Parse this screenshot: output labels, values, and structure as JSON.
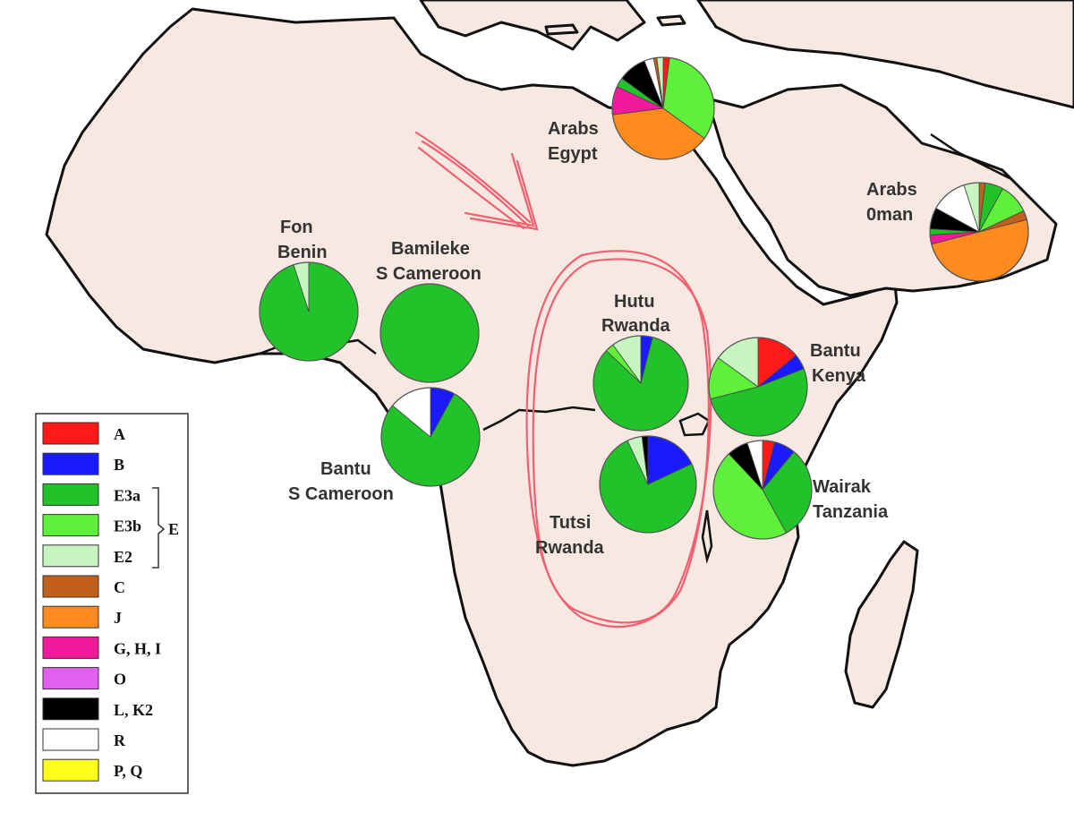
{
  "colors": {
    "A": "#ff1a1a",
    "B": "#1a1aff",
    "E3a": "#22c22a",
    "E3b": "#5ef03a",
    "E2": "#c6f5c0",
    "C": "#c0601c",
    "J": "#ff8a1e",
    "GHI": "#f01a9a",
    "O": "#e060f0",
    "LK2": "#000000",
    "R": "#ffffff",
    "PQ": "#ffff1a",
    "land": "#f7e8e2",
    "sea": "#ffffff",
    "coast": "#111111",
    "annotation": "#f06070"
  },
  "legend": {
    "group_label": "E",
    "items": [
      {
        "key": "A",
        "label": "A",
        "color": "#ff1a1a"
      },
      {
        "key": "B",
        "label": "B",
        "color": "#1a1aff"
      },
      {
        "key": "E3a",
        "label": "E3a",
        "color": "#22c22a"
      },
      {
        "key": "E3b",
        "label": "E3b",
        "color": "#5ef03a"
      },
      {
        "key": "E2",
        "label": "E2",
        "color": "#c6f5c0"
      },
      {
        "key": "C",
        "label": "C",
        "color": "#c0601c"
      },
      {
        "key": "J",
        "label": "J",
        "color": "#ff8a1e"
      },
      {
        "key": "GHI",
        "label": "G, H, I",
        "color": "#f01a9a"
      },
      {
        "key": "O",
        "label": "O",
        "color": "#e060f0"
      },
      {
        "key": "LK2",
        "label": "L, K2",
        "color": "#000000"
      },
      {
        "key": "R",
        "label": "R",
        "color": "#ffffff"
      },
      {
        "key": "PQ",
        "label": "P, Q",
        "color": "#ffff1a"
      }
    ]
  },
  "populations": [
    {
      "id": "arabs-egypt",
      "label_lines": [
        "Arabs",
        "Egypt"
      ],
      "slices": [
        [
          "A",
          2
        ],
        [
          "E3b",
          33
        ],
        [
          "J",
          38
        ],
        [
          "GHI",
          9
        ],
        [
          "E3a",
          3
        ],
        [
          "LK2",
          9
        ],
        [
          "R",
          3
        ],
        [
          "C",
          1
        ],
        [
          "E2",
          2
        ]
      ]
    },
    {
      "id": "arabs-oman",
      "label_lines": [
        "Arabs",
        "0man"
      ],
      "slices": [
        [
          "C",
          2
        ],
        [
          "E3a",
          6
        ],
        [
          "E3b",
          10
        ],
        [
          "C",
          3
        ],
        [
          "J",
          50
        ],
        [
          "GHI",
          3
        ],
        [
          "E3a",
          2
        ],
        [
          "LK2",
          7
        ],
        [
          "R",
          12
        ],
        [
          "E2",
          5
        ]
      ]
    },
    {
      "id": "fon-benin",
      "label_lines": [
        "Fon",
        "Benin"
      ],
      "slices": [
        [
          "E3a",
          95
        ],
        [
          "E2",
          5
        ]
      ]
    },
    {
      "id": "bamileke-s-cameroon",
      "label_lines": [
        "Bamileke",
        "S Cameroon"
      ],
      "slices": [
        [
          "E3a",
          100
        ]
      ]
    },
    {
      "id": "bantu-s-cameroon",
      "label_lines": [
        "Bantu",
        "S Cameroon"
      ],
      "slices": [
        [
          "B",
          8
        ],
        [
          "E3a",
          78
        ],
        [
          "R",
          14
        ]
      ]
    },
    {
      "id": "hutu-rwanda",
      "label_lines": [
        "Hutu",
        "Rwanda"
      ],
      "slices": [
        [
          "B",
          4
        ],
        [
          "E3a",
          83
        ],
        [
          "E3b",
          3
        ],
        [
          "E2",
          10
        ]
      ]
    },
    {
      "id": "tutsi-rwanda",
      "label_lines": [
        "Tutsi",
        "Rwanda"
      ],
      "slices": [
        [
          "B",
          18
        ],
        [
          "E3a",
          75
        ],
        [
          "E2",
          5
        ],
        [
          "LK2",
          2
        ]
      ]
    },
    {
      "id": "bantu-kenya",
      "label_lines": [
        "Bantu",
        "Kenya"
      ],
      "slices": [
        [
          "A",
          14
        ],
        [
          "B",
          5
        ],
        [
          "E3a",
          52
        ],
        [
          "E3b",
          14
        ],
        [
          "E2",
          15
        ]
      ]
    },
    {
      "id": "wairak-tanzania",
      "label_lines": [
        "Wairak",
        "Tanzania"
      ],
      "slices": [
        [
          "A",
          4
        ],
        [
          "B",
          7
        ],
        [
          "E3a",
          31
        ],
        [
          "E3b",
          46
        ],
        [
          "LK2",
          7
        ],
        [
          "R",
          5
        ]
      ]
    }
  ]
}
